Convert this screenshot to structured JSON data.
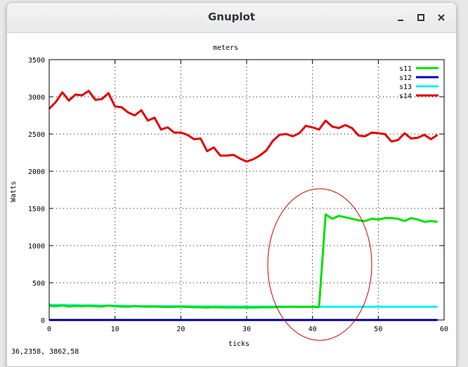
{
  "window": {
    "title": "Gnuplot",
    "minimize_icon": "minimize-icon",
    "maximize_icon": "maximize-icon",
    "close_icon": "close-icon"
  },
  "status": {
    "coords": "36,2358,  3862,58"
  },
  "colors": {
    "s11": "#00e000",
    "s12": "#0000c0",
    "s13": "#00f0f0",
    "s14": "#e00000",
    "annotation": "#cc0000"
  },
  "chart_data": {
    "type": "line",
    "title": "meters",
    "xlabel": "ticks",
    "ylabel": "Watts",
    "xlim": [
      0,
      60
    ],
    "ylim": [
      0,
      3500
    ],
    "grid": true,
    "legend_position": "top-right",
    "x_ticks": [
      "0",
      "10",
      "20",
      "30",
      "40",
      "50",
      "60"
    ],
    "y_ticks": [
      "0",
      "500",
      "1000",
      "1500",
      "2000",
      "2500",
      "3000",
      "3500"
    ],
    "x": [
      0,
      1,
      2,
      3,
      4,
      5,
      6,
      7,
      8,
      9,
      10,
      11,
      12,
      13,
      14,
      15,
      16,
      17,
      18,
      19,
      20,
      21,
      22,
      23,
      24,
      25,
      26,
      27,
      28,
      29,
      30,
      31,
      32,
      33,
      34,
      35,
      36,
      37,
      38,
      39,
      40,
      41,
      42,
      43,
      44,
      45,
      46,
      47,
      48,
      49,
      50,
      51,
      52,
      53,
      54,
      55,
      56,
      57,
      58,
      59
    ],
    "series": [
      {
        "name": "s11",
        "values": [
          190,
          185,
          195,
          180,
          190,
          185,
          190,
          185,
          180,
          195,
          185,
          180,
          178,
          185,
          180,
          178,
          180,
          176,
          175,
          176,
          178,
          175,
          173,
          170,
          168,
          172,
          170,
          168,
          170,
          168,
          170,
          168,
          170,
          172,
          170,
          175,
          175,
          178,
          175,
          176,
          175,
          175,
          1420,
          1360,
          1400,
          1380,
          1360,
          1340,
          1330,
          1360,
          1350,
          1370,
          1370,
          1360,
          1330,
          1370,
          1350,
          1320,
          1330,
          1320
        ]
      },
      {
        "name": "s12",
        "values": [
          0,
          0,
          0,
          0,
          0,
          0,
          0,
          0,
          0,
          0,
          0,
          0,
          0,
          0,
          0,
          0,
          0,
          0,
          0,
          0,
          0,
          0,
          0,
          0,
          0,
          0,
          0,
          0,
          0,
          0,
          0,
          0,
          0,
          0,
          0,
          0,
          0,
          0,
          0,
          0,
          0,
          0,
          0,
          0,
          0,
          0,
          0,
          0,
          0,
          0,
          0,
          0,
          0,
          0,
          0,
          0,
          0,
          0,
          0,
          0
        ]
      },
      {
        "name": "s13",
        "values": [
          205,
          202,
          200,
          200,
          198,
          197,
          195,
          195,
          193,
          192,
          190,
          190,
          188,
          188,
          187,
          186,
          185,
          185,
          184,
          184,
          183,
          183,
          182,
          182,
          182,
          181,
          181,
          180,
          180,
          180,
          180,
          179,
          179,
          179,
          179,
          179,
          179,
          178,
          178,
          178,
          178,
          178,
          178,
          178,
          178,
          178,
          178,
          178,
          178,
          178,
          178,
          178,
          178,
          178,
          178,
          178,
          178,
          178,
          178,
          178
        ]
      },
      {
        "name": "s14",
        "values": [
          2840,
          2930,
          3060,
          2950,
          3030,
          3020,
          3080,
          2960,
          2970,
          3050,
          2870,
          2860,
          2790,
          2750,
          2820,
          2680,
          2720,
          2560,
          2590,
          2520,
          2520,
          2490,
          2430,
          2440,
          2270,
          2320,
          2210,
          2210,
          2220,
          2170,
          2130,
          2160,
          2210,
          2280,
          2410,
          2490,
          2500,
          2470,
          2510,
          2610,
          2590,
          2560,
          2680,
          2600,
          2580,
          2620,
          2580,
          2480,
          2470,
          2520,
          2510,
          2500,
          2400,
          2420,
          2510,
          2440,
          2450,
          2490,
          2430,
          2490
        ]
      }
    ]
  }
}
